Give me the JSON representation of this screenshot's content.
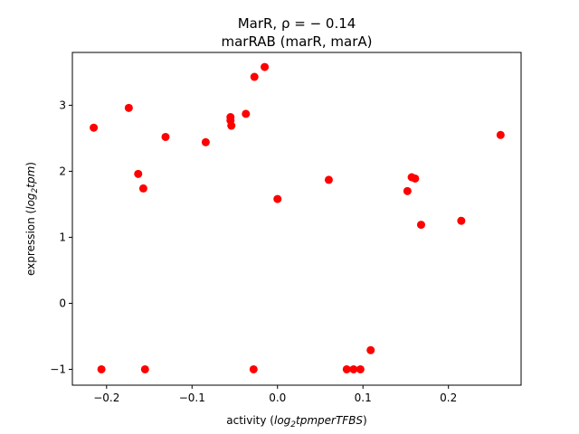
{
  "chart_data": {
    "type": "scatter",
    "title_lines": [
      "MarR, ρ = − 0.14",
      "marRAB (marR, marA)"
    ],
    "xlabel_prefix": "activity (",
    "xlabel_italic": "log",
    "xlabel_sub": "2",
    "xlabel_italic_rest": "tpmperTFBS",
    "xlabel_suffix": ")",
    "ylabel_prefix": "expression (",
    "ylabel_italic": "log",
    "ylabel_sub": "2",
    "ylabel_italic_rest": "tpm",
    "ylabel_suffix": ")",
    "xlim": [
      -0.24,
      0.285
    ],
    "ylim": [
      -1.24,
      3.8
    ],
    "xticks": [
      -0.2,
      -0.1,
      0.0,
      0.1,
      0.2
    ],
    "xtick_labels": [
      "−0.2",
      "−0.1",
      "0.0",
      "0.1",
      "0.2"
    ],
    "yticks": [
      -1,
      0,
      1,
      2,
      3
    ],
    "ytick_labels": [
      "−1",
      "0",
      "1",
      "2",
      "3"
    ],
    "grid": false,
    "marker_color": "#ff0000",
    "points": [
      {
        "x": -0.215,
        "y": 2.66
      },
      {
        "x": -0.174,
        "y": 2.96
      },
      {
        "x": -0.163,
        "y": 1.96
      },
      {
        "x": -0.157,
        "y": 1.74
      },
      {
        "x": -0.131,
        "y": 2.52
      },
      {
        "x": -0.084,
        "y": 2.44
      },
      {
        "x": -0.055,
        "y": 2.77
      },
      {
        "x": -0.055,
        "y": 2.82
      },
      {
        "x": -0.054,
        "y": 2.69
      },
      {
        "x": -0.037,
        "y": 2.87
      },
      {
        "x": -0.027,
        "y": 3.43
      },
      {
        "x": -0.015,
        "y": 3.58
      },
      {
        "x": 0.0,
        "y": 1.58
      },
      {
        "x": 0.06,
        "y": 1.87
      },
      {
        "x": 0.152,
        "y": 1.7
      },
      {
        "x": 0.157,
        "y": 1.91
      },
      {
        "x": 0.161,
        "y": 1.89
      },
      {
        "x": 0.168,
        "y": 1.19
      },
      {
        "x": 0.215,
        "y": 1.25
      },
      {
        "x": 0.261,
        "y": 2.55
      },
      {
        "x": -0.206,
        "y": -1.0
      },
      {
        "x": -0.155,
        "y": -1.0
      },
      {
        "x": -0.028,
        "y": -1.0
      },
      {
        "x": 0.081,
        "y": -1.0
      },
      {
        "x": 0.089,
        "y": -1.0
      },
      {
        "x": 0.097,
        "y": -1.0
      },
      {
        "x": 0.109,
        "y": -0.71
      }
    ]
  }
}
